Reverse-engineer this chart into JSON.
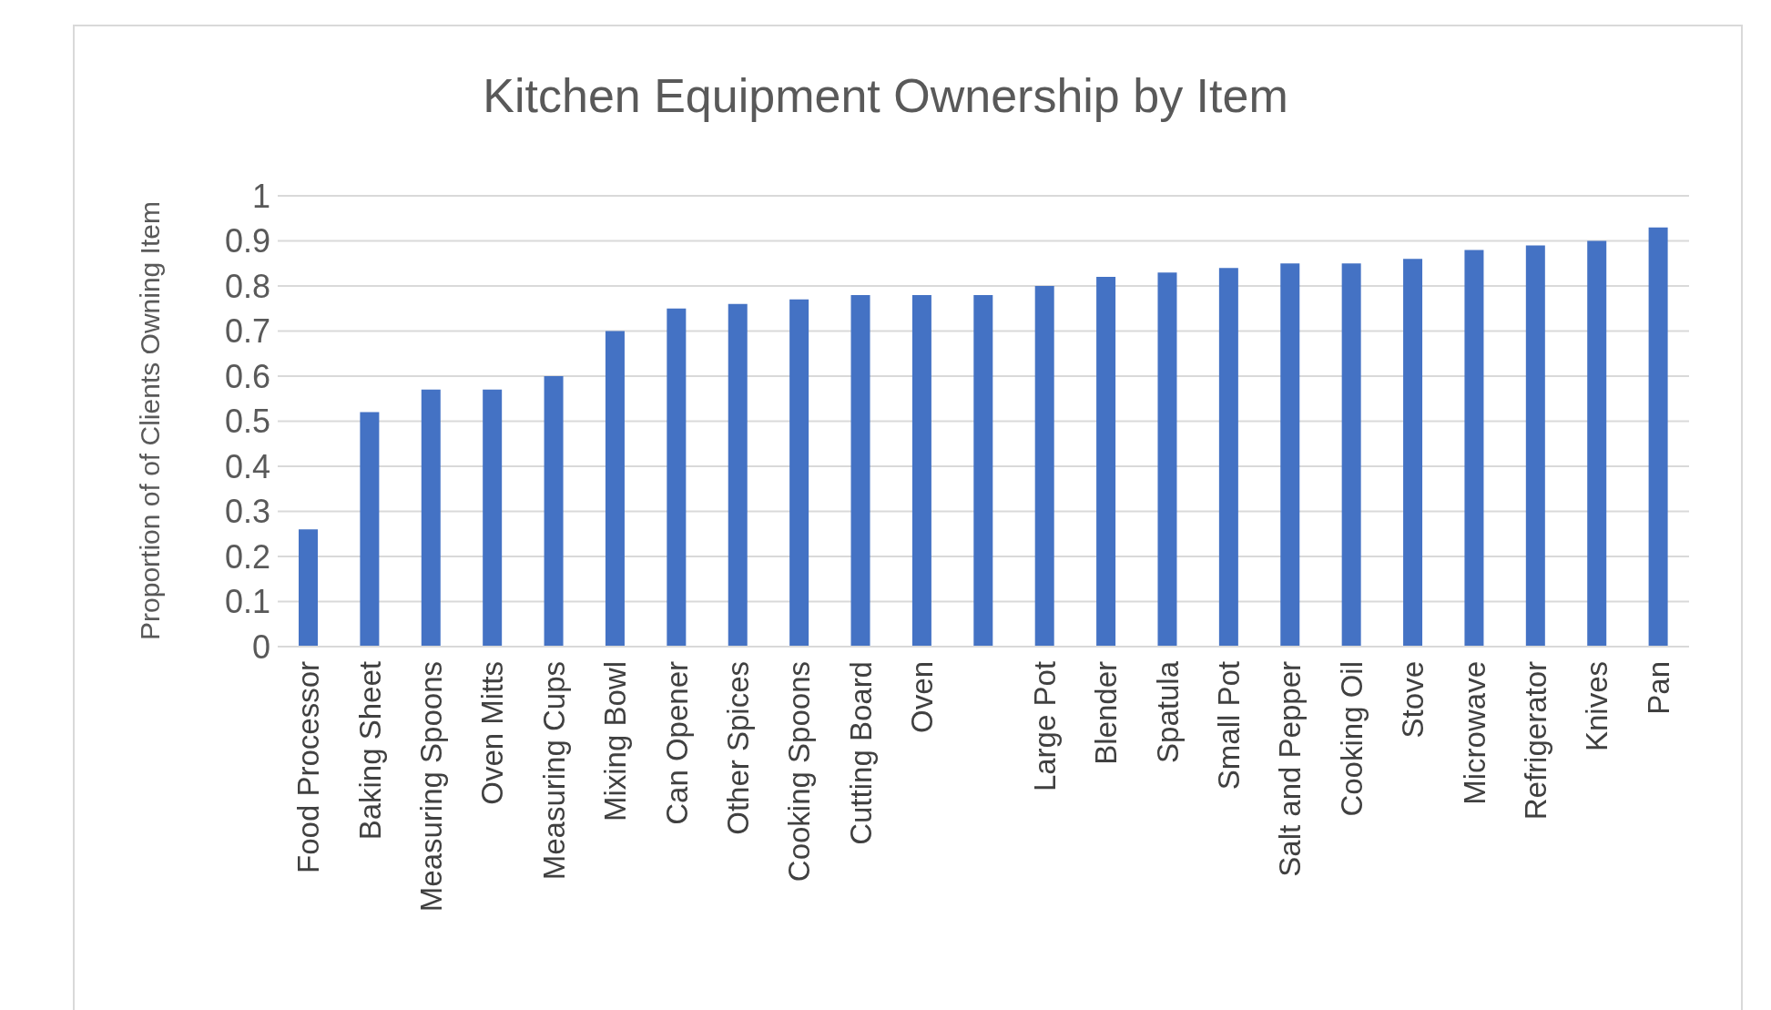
{
  "chart_data": {
    "type": "bar",
    "title": "Kitchen Equipment Ownership by Item",
    "ylabel": "Proportion of of Clients Owning Item",
    "categories": [
      "Food Processor",
      "Baking Sheet",
      "Measuring Spoons",
      "Oven Mitts",
      "Measuring Cups",
      "Mixing Bowl",
      "Can Opener",
      "Other Spices",
      "Cooking Spoons",
      "Cutting Board",
      "Oven",
      null,
      "Large Pot",
      "Blender",
      "Spatula",
      "Small Pot",
      "Salt and Pepper",
      "Cooking Oil",
      "Stove",
      "Microwave",
      "Refrigerator",
      "Knives",
      "Pan"
    ],
    "values": [
      0.26,
      0.52,
      0.57,
      0.57,
      0.6,
      0.7,
      0.75,
      0.76,
      0.77,
      0.78,
      0.78,
      0.78,
      0.8,
      0.82,
      0.83,
      0.84,
      0.85,
      0.85,
      0.86,
      0.88,
      0.89,
      0.9,
      0.93
    ],
    "color": "#4472c4",
    "ylim": [
      0,
      1
    ],
    "yticks": [
      0,
      0.1,
      0.2,
      0.3,
      0.4,
      0.5,
      0.6,
      0.7,
      0.8,
      0.9,
      1
    ],
    "grid": "y"
  }
}
